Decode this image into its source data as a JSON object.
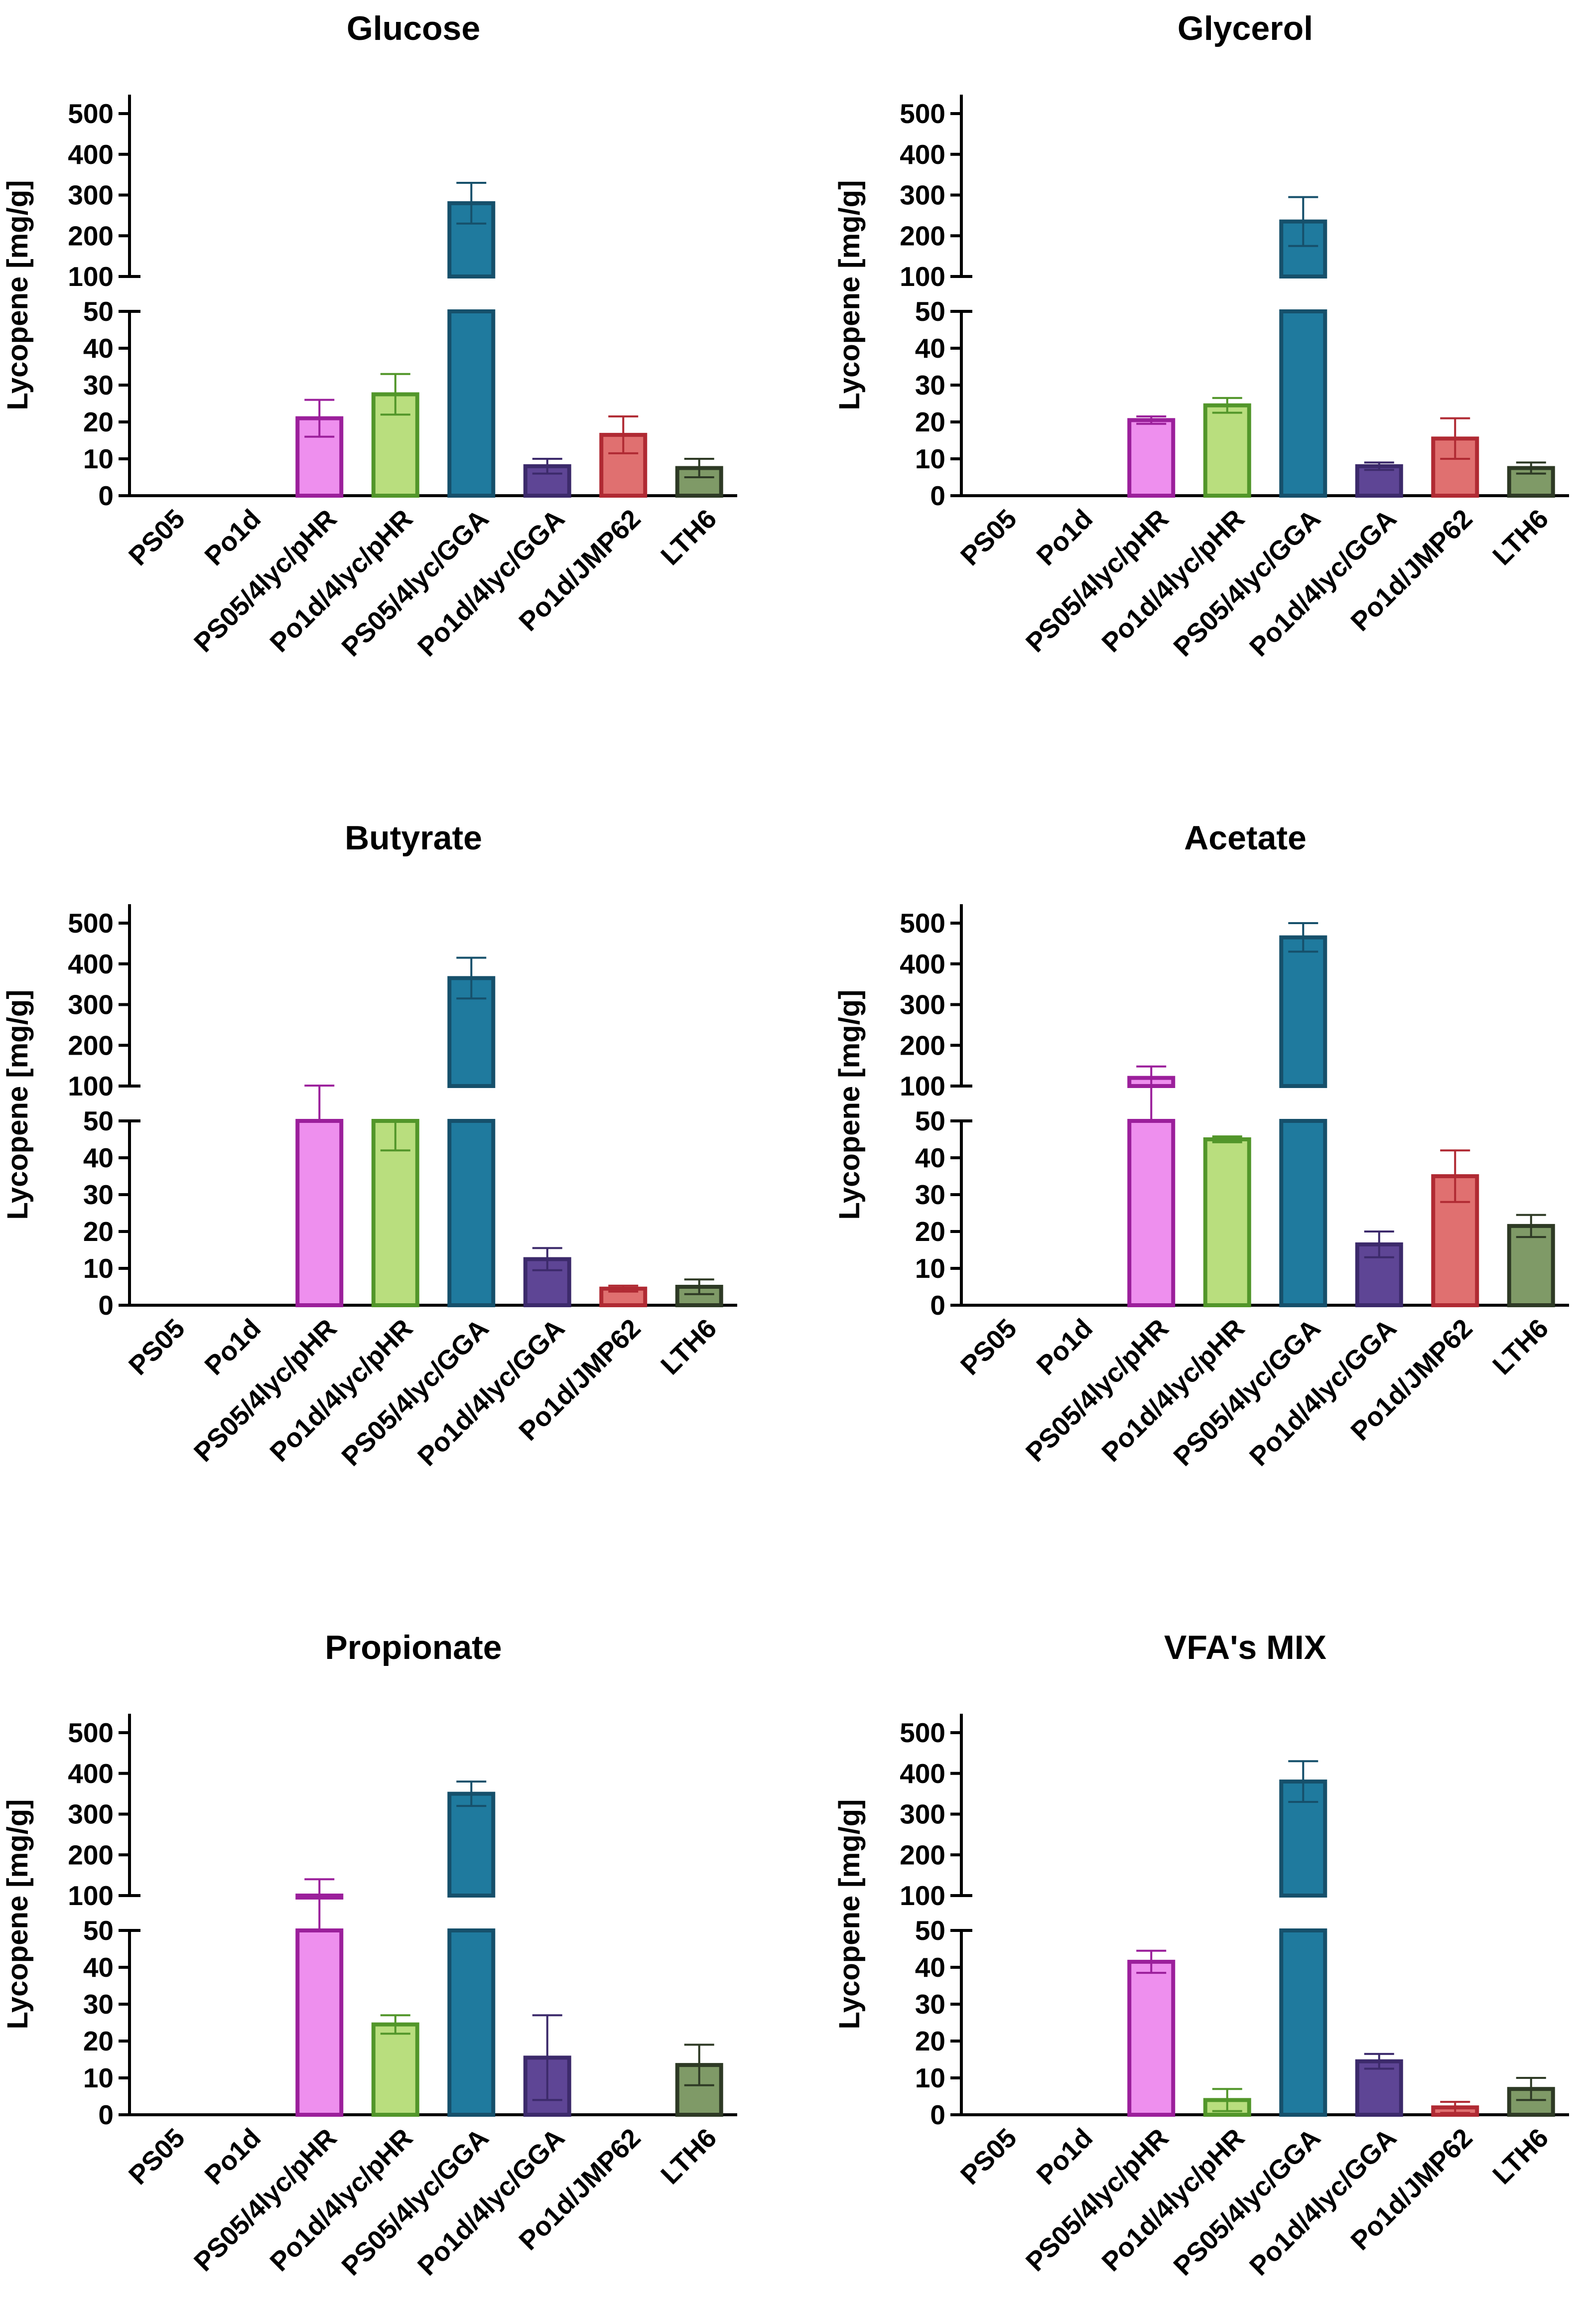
{
  "chart_data": [
    {
      "type": "bar",
      "title": "Glucose",
      "ylabel": "Lycopene [mg/g]",
      "xlabel": "",
      "ylim": [
        0,
        500
      ],
      "y_axis_break": [
        50,
        100
      ],
      "yticks_lower": [
        "0",
        "10",
        "20",
        "30",
        "40",
        "50"
      ],
      "yticks_upper": [
        "100",
        "200",
        "300",
        "400",
        "500"
      ],
      "categories": [
        "PS05",
        "Po1d",
        "PS05/4lyc/pHR",
        "Po1d/4lyc/pHR",
        "PS05/4lyc/GGA",
        "Po1d/4lyc/GGA",
        "Po1d/JMP62",
        "LTH6"
      ],
      "values": [
        0,
        0,
        21,
        27.5,
        280,
        8,
        16.5,
        7.5
      ],
      "errors": [
        0,
        0,
        5,
        5.5,
        50,
        2,
        5,
        2.5
      ],
      "colors_fill": [
        "#e58be5",
        "#e58be5",
        "#ee8fee",
        "#b9de7e",
        "#1f7a9e",
        "#5e4595",
        "#e07070",
        "#7f9a67"
      ],
      "colors_edge": [
        "#9b1f9b",
        "#9b1f9b",
        "#9b1f9b",
        "#52962a",
        "#16506b",
        "#3c2a6b",
        "#b02a33",
        "#2e3a25"
      ]
    },
    {
      "type": "bar",
      "title": "Glycerol",
      "ylabel": "Lycopene [mg/g]",
      "xlabel": "",
      "ylim": [
        0,
        500
      ],
      "y_axis_break": [
        50,
        100
      ],
      "yticks_lower": [
        "0",
        "10",
        "20",
        "30",
        "40",
        "50"
      ],
      "yticks_upper": [
        "100",
        "200",
        "300",
        "400",
        "500"
      ],
      "categories": [
        "PS05",
        "Po1d",
        "PS05/4lyc/pHR",
        "Po1d/4lyc/pHR",
        "PS05/4lyc/GGA",
        "Po1d/4lyc/GGA",
        "Po1d/JMP62",
        "LTH6"
      ],
      "values": [
        0,
        0,
        20.5,
        24.5,
        235,
        8,
        15.5,
        7.5
      ],
      "errors": [
        0,
        0,
        1,
        2,
        60,
        1,
        5.5,
        1.5
      ],
      "colors_fill": [
        "#e58be5",
        "#e58be5",
        "#ee8fee",
        "#b9de7e",
        "#1f7a9e",
        "#5e4595",
        "#e07070",
        "#7f9a67"
      ],
      "colors_edge": [
        "#9b1f9b",
        "#9b1f9b",
        "#9b1f9b",
        "#52962a",
        "#16506b",
        "#3c2a6b",
        "#b02a33",
        "#2e3a25"
      ]
    },
    {
      "type": "bar",
      "title": "Butyrate",
      "ylabel": "Lycopene [mg/g]",
      "xlabel": "",
      "ylim": [
        0,
        500
      ],
      "y_axis_break": [
        50,
        100
      ],
      "yticks_lower": [
        "0",
        "10",
        "20",
        "30",
        "40",
        "50"
      ],
      "yticks_upper": [
        "100",
        "200",
        "300",
        "400",
        "500"
      ],
      "categories": [
        "PS05",
        "Po1d",
        "PS05/4lyc/pHR",
        "Po1d/4lyc/pHR",
        "PS05/4lyc/GGA",
        "Po1d/4lyc/GGA",
        "Po1d/JMP62",
        "LTH6"
      ],
      "values": [
        0,
        0,
        88,
        50,
        365,
        12.5,
        4.5,
        5
      ],
      "errors": [
        0,
        0,
        13,
        8,
        50,
        3,
        0.8,
        2
      ],
      "colors_fill": [
        "#e58be5",
        "#e58be5",
        "#ee8fee",
        "#b9de7e",
        "#1f7a9e",
        "#5e4595",
        "#e07070",
        "#7f9a67"
      ],
      "colors_edge": [
        "#9b1f9b",
        "#9b1f9b",
        "#9b1f9b",
        "#52962a",
        "#16506b",
        "#3c2a6b",
        "#b02a33",
        "#2e3a25"
      ]
    },
    {
      "type": "bar",
      "title": "Acetate",
      "ylabel": "Lycopene [mg/g]",
      "xlabel": "",
      "ylim": [
        0,
        500
      ],
      "y_axis_break": [
        50,
        100
      ],
      "yticks_lower": [
        "0",
        "10",
        "20",
        "30",
        "40",
        "50"
      ],
      "yticks_upper": [
        "100",
        "200",
        "300",
        "400",
        "500"
      ],
      "categories": [
        "PS05",
        "Po1d",
        "PS05/4lyc/pHR",
        "Po1d/4lyc/pHR",
        "PS05/4lyc/GGA",
        "Po1d/4lyc/GGA",
        "Po1d/JMP62",
        "LTH6"
      ],
      "values": [
        0,
        0,
        120,
        45,
        465,
        16.5,
        35,
        21.5
      ],
      "errors": [
        0,
        0,
        28,
        0.8,
        35,
        3.5,
        7,
        3
      ],
      "colors_fill": [
        "#e58be5",
        "#e58be5",
        "#ee8fee",
        "#b9de7e",
        "#1f7a9e",
        "#5e4595",
        "#e07070",
        "#7f9a67"
      ],
      "colors_edge": [
        "#9b1f9b",
        "#9b1f9b",
        "#9b1f9b",
        "#52962a",
        "#16506b",
        "#3c2a6b",
        "#b02a33",
        "#2e3a25"
      ]
    },
    {
      "type": "bar",
      "title": "Propionate",
      "ylabel": "Lycopene [mg/g]",
      "xlabel": "",
      "ylim": [
        0,
        500
      ],
      "y_axis_break": [
        50,
        100
      ],
      "yticks_lower": [
        "0",
        "10",
        "20",
        "30",
        "40",
        "50"
      ],
      "yticks_upper": [
        "100",
        "200",
        "300",
        "400",
        "500"
      ],
      "categories": [
        "PS05",
        "Po1d",
        "PS05/4lyc/pHR",
        "Po1d/4lyc/pHR",
        "PS05/4lyc/GGA",
        "Po1d/4lyc/GGA",
        "Po1d/JMP62",
        "LTH6"
      ],
      "values": [
        0,
        0,
        100,
        24.5,
        350,
        15.5,
        0,
        13.5
      ],
      "errors": [
        0,
        0,
        40,
        2.5,
        30,
        11.5,
        0,
        5.5
      ],
      "colors_fill": [
        "#e58be5",
        "#e58be5",
        "#ee8fee",
        "#b9de7e",
        "#1f7a9e",
        "#5e4595",
        "#e07070",
        "#7f9a67"
      ],
      "colors_edge": [
        "#9b1f9b",
        "#9b1f9b",
        "#9b1f9b",
        "#52962a",
        "#16506b",
        "#3c2a6b",
        "#b02a33",
        "#2e3a25"
      ]
    },
    {
      "type": "bar",
      "title": "VFA's MIX",
      "ylabel": "Lycopene [mg/g]",
      "xlabel": "",
      "ylim": [
        0,
        500
      ],
      "y_axis_break": [
        50,
        100
      ],
      "yticks_lower": [
        "0",
        "10",
        "20",
        "30",
        "40",
        "50"
      ],
      "yticks_upper": [
        "100",
        "200",
        "300",
        "400",
        "500"
      ],
      "categories": [
        "PS05",
        "Po1d",
        "PS05/4lyc/pHR",
        "Po1d/4lyc/pHR",
        "PS05/4lyc/GGA",
        "Po1d/4lyc/GGA",
        "Po1d/JMP62",
        "LTH6"
      ],
      "values": [
        0,
        0,
        41.5,
        4,
        380,
        14.5,
        2,
        7
      ],
      "errors": [
        0,
        0,
        3,
        3,
        50,
        2,
        1.5,
        3
      ],
      "colors_fill": [
        "#e58be5",
        "#e58be5",
        "#ee8fee",
        "#b9de7e",
        "#1f7a9e",
        "#5e4595",
        "#e07070",
        "#7f9a67"
      ],
      "colors_edge": [
        "#9b1f9b",
        "#9b1f9b",
        "#9b1f9b",
        "#52962a",
        "#16506b",
        "#3c2a6b",
        "#b02a33",
        "#2e3a25"
      ]
    }
  ]
}
